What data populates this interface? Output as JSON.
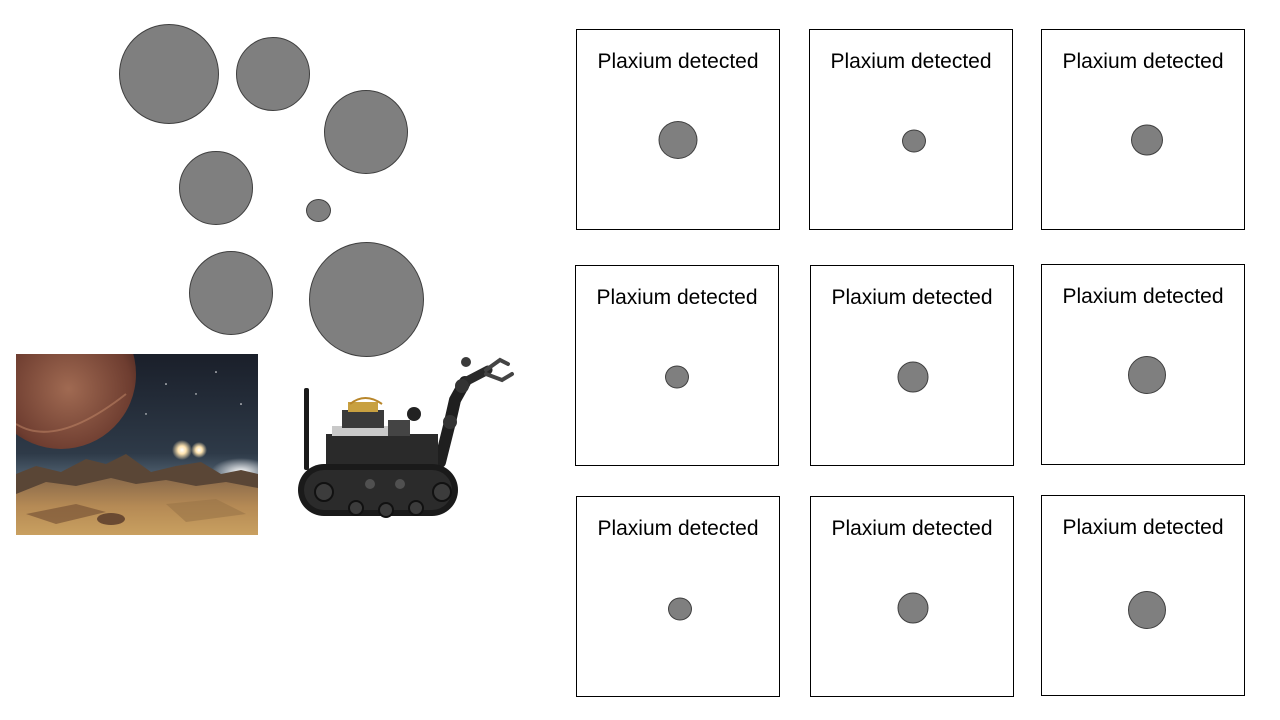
{
  "colors": {
    "background": "#ffffff",
    "sample_fill": "#7f7f7f",
    "sample_stroke": "#3f3f3f",
    "card_border": "#000000"
  },
  "samples": {
    "count": 7
  },
  "scene": {
    "planet_image": "alien-planet-landscape-illustration",
    "robot_image": "tracked-robot-with-arm-photo"
  },
  "cards": [
    {
      "label": "Plaxium detected"
    },
    {
      "label": "Plaxium detected"
    },
    {
      "label": "Plaxium detected"
    },
    {
      "label": "Plaxium detected"
    },
    {
      "label": "Plaxium detected"
    },
    {
      "label": "Plaxium detected"
    },
    {
      "label": "Plaxium detected"
    },
    {
      "label": "Plaxium detected"
    },
    {
      "label": "Plaxium detected"
    }
  ]
}
